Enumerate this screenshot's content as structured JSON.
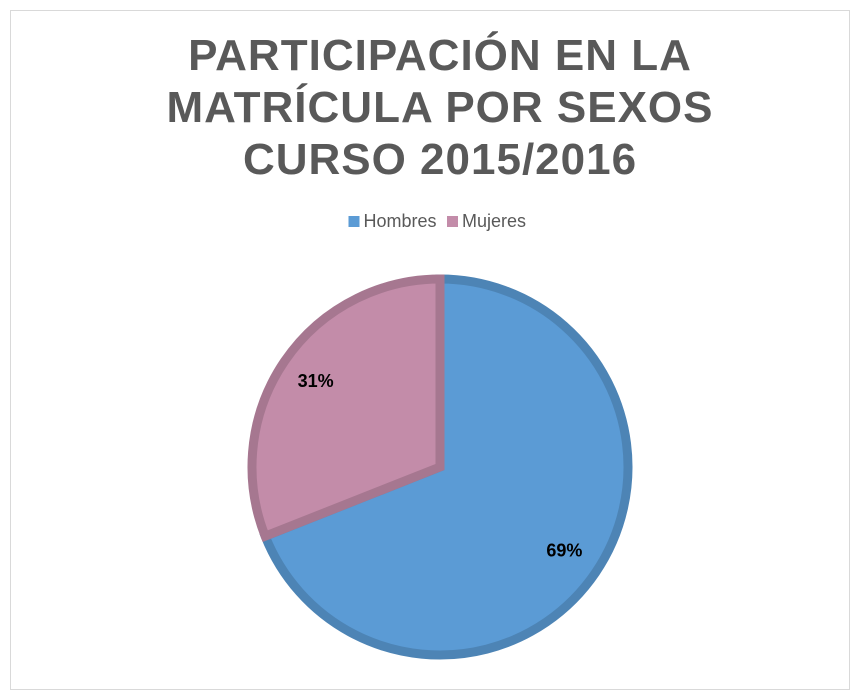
{
  "chart_data": {
    "type": "pie",
    "title": "PARTICIPACIÓN EN LA MATRÍCULA POR SEXOS CURSO 2015/2016",
    "categories": [
      "Hombres",
      "Mujeres"
    ],
    "values": [
      69,
      31
    ],
    "value_labels": [
      "69%",
      "31%"
    ],
    "colors": [
      "#5b9bd5",
      "#c38ca9"
    ],
    "legend": "top"
  }
}
